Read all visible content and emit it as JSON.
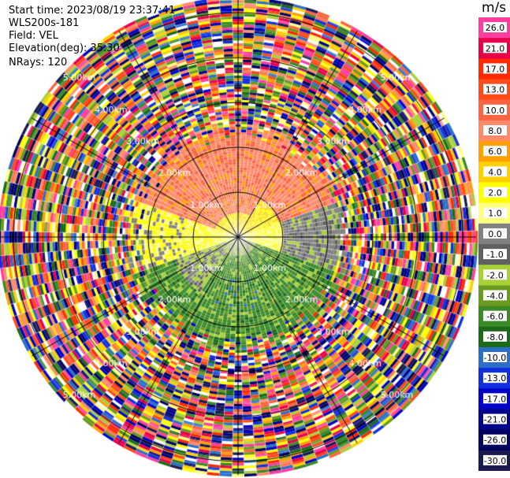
{
  "header": {
    "start_time": "Start time: 2023/08/19 23:37:41",
    "instrument": "WLS200s-181",
    "field": "Field: VEL",
    "elevation": "Elevation(deg): 35.30",
    "nrays": "NRays: 120"
  },
  "chart_data": {
    "type": "heatmap",
    "subtype": "polar-ppi",
    "field": "VEL",
    "units": "m/s",
    "n_rays": 120,
    "elevation_deg": 35.3,
    "range_rings_km": [
      1.0,
      2.0,
      3.0,
      4.0,
      5.0
    ],
    "range_ring_labels": [
      "1.00km",
      "2.00km",
      "3.00km",
      "4.00km",
      "5.00km"
    ],
    "max_range_km": 5.3,
    "azimuth_lines_deg": [
      0,
      30,
      60,
      90,
      120,
      150,
      180,
      210,
      240,
      270,
      300,
      330
    ],
    "colorbar": {
      "title": "m/s",
      "tick_labels": [
        "26.0",
        "21.0",
        "17.0",
        "13.0",
        "10.0",
        "8.0",
        "6.0",
        "4.0",
        "2.0",
        "1.0",
        "0.0",
        "-1.0",
        "-2.0",
        "-4.0",
        "-6.0",
        "-8.0",
        "-10.0",
        "-13.0",
        "-17.0",
        "-21.0",
        "-26.0",
        "-30.0"
      ],
      "colors": [
        "#ff3ea0",
        "#e8004a",
        "#ff2a00",
        "#ff4a1a",
        "#ff6440",
        "#ff8a6a",
        "#ffa000",
        "#ffd000",
        "#ffff00",
        "#ffff80",
        "#808080",
        "#606060",
        "#a8d038",
        "#6a9a20",
        "#3a8a28",
        "#1a6a18",
        "#2a70c8",
        "#1030e0",
        "#0000c8",
        "#000088",
        "#000060",
        "#1a1a50"
      ]
    },
    "inner_pattern": {
      "north_sector": "positive 6 to 10 m/s (orange)",
      "east_west_band": "0 to 2 m/s (yellow / gray)",
      "south_sector": "negative -2 to -8 m/s (green)",
      "beyond_km": 2.4,
      "outer_region": "noise (random colors)"
    }
  }
}
